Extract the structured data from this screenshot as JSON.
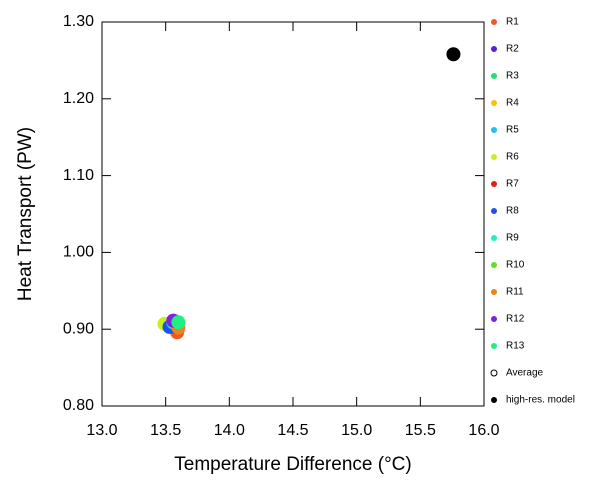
{
  "chart_data": {
    "type": "scatter",
    "x_label": "Temperature Difference (°C)",
    "y_label": "Heat Transport (PW)",
    "xlim": [
      13.0,
      16.0
    ],
    "ylim": [
      0.8,
      1.3
    ],
    "xticks": [
      {
        "value": 13.0,
        "label": "13.0"
      },
      {
        "value": 13.5,
        "label": "13.5"
      },
      {
        "value": 14.0,
        "label": "14.0"
      },
      {
        "value": 14.5,
        "label": "14.5"
      },
      {
        "value": 15.0,
        "label": "15.0"
      },
      {
        "value": 15.5,
        "label": "15.5"
      },
      {
        "value": 16.0,
        "label": "16.0"
      }
    ],
    "yticks": [
      {
        "value": 0.8,
        "label": "0.80"
      },
      {
        "value": 0.9,
        "label": "0.90"
      },
      {
        "value": 1.0,
        "label": "1.00"
      },
      {
        "value": 1.1,
        "label": "1.10"
      },
      {
        "value": 1.2,
        "label": "1.20"
      },
      {
        "value": 1.3,
        "label": "1.30"
      }
    ],
    "legend_position": "right",
    "series": [
      {
        "name": "R1",
        "color": "#ee5a24",
        "x": [
          13.59
        ],
        "values": [
          0.896
        ]
      },
      {
        "name": "R2",
        "color": "#5a1ee6",
        "x": [
          13.56
        ],
        "values": [
          0.911
        ]
      },
      {
        "name": "R3",
        "color": "#20e070",
        "x": [
          13.58
        ],
        "values": [
          0.908
        ]
      },
      {
        "name": "R4",
        "color": "#f8c000",
        "x": [
          13.55
        ],
        "values": [
          0.905
        ]
      },
      {
        "name": "R5",
        "color": "#20c0f0",
        "x": [
          13.54
        ],
        "values": [
          0.906
        ]
      },
      {
        "name": "R6",
        "color": "#c8f020",
        "x": [
          13.49
        ],
        "values": [
          0.907
        ]
      },
      {
        "name": "R7",
        "color": "#e02010",
        "x": [
          13.57
        ],
        "values": [
          0.903
        ]
      },
      {
        "name": "R8",
        "color": "#1e50f0",
        "x": [
          13.53
        ],
        "values": [
          0.903
        ]
      },
      {
        "name": "R9",
        "color": "#20f0c0",
        "x": [
          13.56
        ],
        "values": [
          0.909
        ]
      },
      {
        "name": "R10",
        "color": "#60e020",
        "x": [
          13.58
        ],
        "values": [
          0.91
        ]
      },
      {
        "name": "R11",
        "color": "#f08020",
        "x": [
          13.6
        ],
        "values": [
          0.902
        ]
      },
      {
        "name": "R12",
        "color": "#8020e0",
        "x": [
          13.56
        ],
        "values": [
          0.911
        ]
      },
      {
        "name": "R13",
        "color": "#20f080",
        "x": [
          13.6
        ],
        "values": [
          0.909
        ]
      },
      {
        "name": "Average",
        "color": "#000000",
        "hollow": true,
        "x": [
          13.56
        ],
        "values": [
          0.906
        ]
      },
      {
        "name": "high-res. model",
        "color": "#000000",
        "x": [
          15.76
        ],
        "values": [
          1.258
        ]
      }
    ]
  }
}
